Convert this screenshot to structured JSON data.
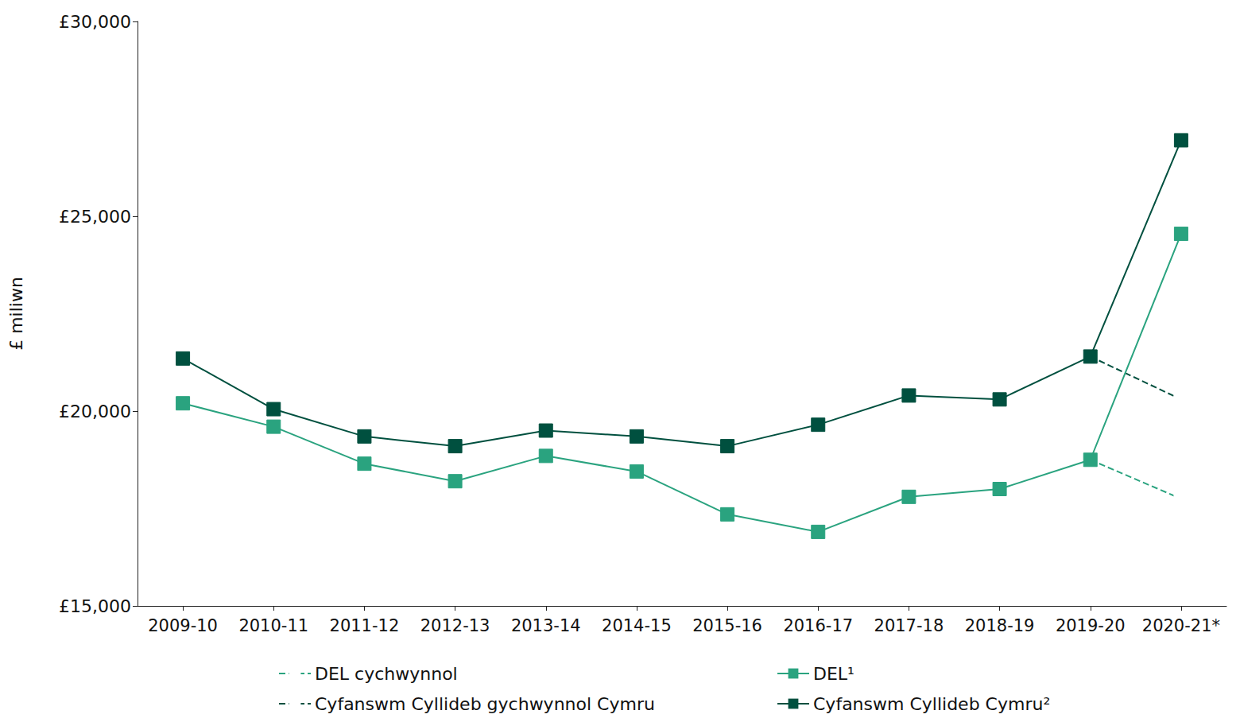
{
  "chart_data": {
    "type": "line",
    "y_label": "£ miliwn",
    "categories": [
      "2009-10",
      "2010-11",
      "2011-12",
      "2012-13",
      "2013-14",
      "2014-15",
      "2015-16",
      "2016-17",
      "2017-18",
      "2018-19",
      "2019-20",
      "2020-21*"
    ],
    "series": [
      {
        "name": "DEL cychwynnol",
        "color": "#2aa37f",
        "marker": "open_square",
        "line_style": "dashed",
        "values": [
          null,
          null,
          null,
          null,
          null,
          null,
          null,
          null,
          null,
          null,
          18750,
          17750
        ]
      },
      {
        "name": "DEL¹",
        "color": "#2aa37f",
        "marker": "square",
        "line_style": "solid",
        "values": [
          20200,
          19600,
          18650,
          18200,
          18850,
          18450,
          17350,
          16900,
          17800,
          18000,
          18750,
          24550
        ]
      },
      {
        "name": "Cyfanswm Cyllideb gychwynnol Cymru",
        "color": "#00503f",
        "marker": "open_square",
        "line_style": "dashed",
        "values": [
          null,
          null,
          null,
          null,
          null,
          null,
          null,
          null,
          null,
          null,
          21400,
          20300
        ]
      },
      {
        "name": "Cyfanswm Cyllideb Cymru²",
        "color": "#00503f",
        "marker": "square",
        "line_style": "solid",
        "values": [
          21350,
          20050,
          19350,
          19100,
          19500,
          19350,
          19100,
          19650,
          20400,
          20300,
          21400,
          26950
        ]
      }
    ],
    "ylim": [
      15000,
      30000
    ],
    "yticks": [
      {
        "value": 15000,
        "label": "£15,000"
      },
      {
        "value": 20000,
        "label": "£20,000"
      },
      {
        "value": 25000,
        "label": "£25,000"
      },
      {
        "value": 30000,
        "label": "£30,000"
      }
    ],
    "grid": false,
    "legend": "bottom"
  }
}
